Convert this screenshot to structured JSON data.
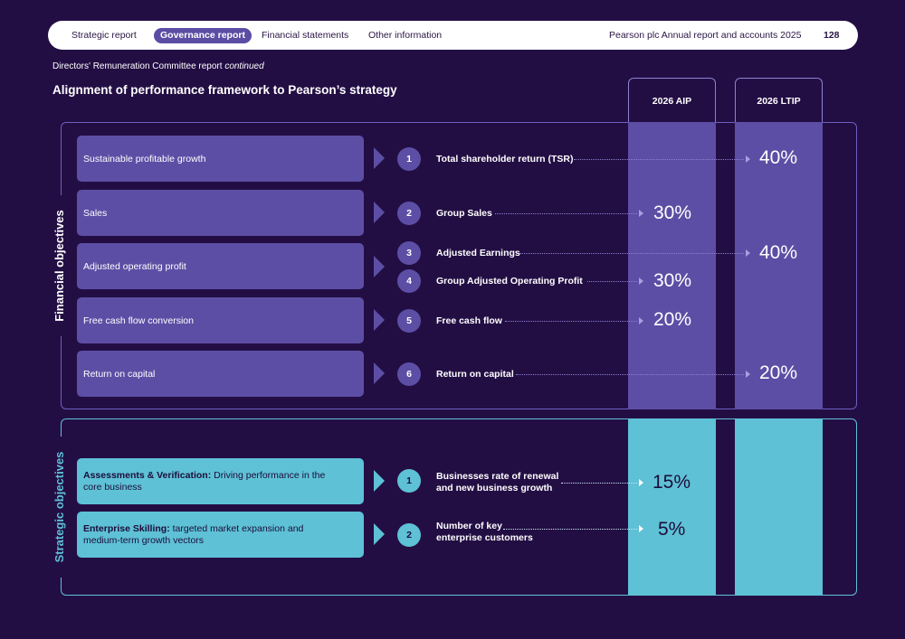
{
  "nav": {
    "items": [
      "Strategic report",
      "Governance report",
      "Financial statements",
      "Other information"
    ],
    "report_title": "Pearson plc Annual report and accounts 2025",
    "page_number": "128"
  },
  "header": {
    "subtitle_main": "Directors' Remuneration Committee report",
    "subtitle_italic": "continued",
    "title": "Alignment of performance framework to Pearson’s strategy"
  },
  "columns": {
    "aip": "2026 AIP",
    "ltip": "2026 LTIP"
  },
  "colors": {
    "background": "#230e44",
    "financial": "#5d4ea5",
    "strategic": "#5ec1d6",
    "active_tab": "#5b4da4"
  },
  "financial": {
    "label": "Financial objectives",
    "objectives": [
      "Sustainable profitable growth",
      "Sales",
      "Adjusted operating profit",
      "Free cash flow conversion",
      "Return on capital"
    ],
    "measures": [
      {
        "num": "1",
        "label": "Total shareholder return (TSR)",
        "plan": "LTIP",
        "weight": "40%"
      },
      {
        "num": "2",
        "label": "Group Sales",
        "plan": "AIP",
        "weight": "30%"
      },
      {
        "num": "3",
        "label": "Adjusted Earnings",
        "plan": "LTIP",
        "weight": "40%"
      },
      {
        "num": "4",
        "label": "Group Adjusted Operating Profit",
        "plan": "AIP",
        "weight": "30%"
      },
      {
        "num": "5",
        "label": "Free cash flow",
        "plan": "AIP",
        "weight": "20%"
      },
      {
        "num": "6",
        "label": "Return on capital",
        "plan": "LTIP",
        "weight": "20%"
      }
    ]
  },
  "strategic": {
    "label": "Strategic objectives",
    "objectives": [
      {
        "bold": "Assessments & Verification:",
        "line1": "Driving performance in the",
        "line2": "core business"
      },
      {
        "bold": "Enterprise Skilling:",
        "line1": "targeted market expansion and",
        "line2": "medium-term growth vectors"
      }
    ],
    "measures": [
      {
        "num": "1",
        "line1": "Businesses rate of renewal",
        "line2": "and new business growth",
        "plan": "AIP",
        "weight": "15%"
      },
      {
        "num": "2",
        "line1": "Number of key",
        "line2": "enterprise customers",
        "plan": "AIP",
        "weight": "5%"
      }
    ]
  }
}
